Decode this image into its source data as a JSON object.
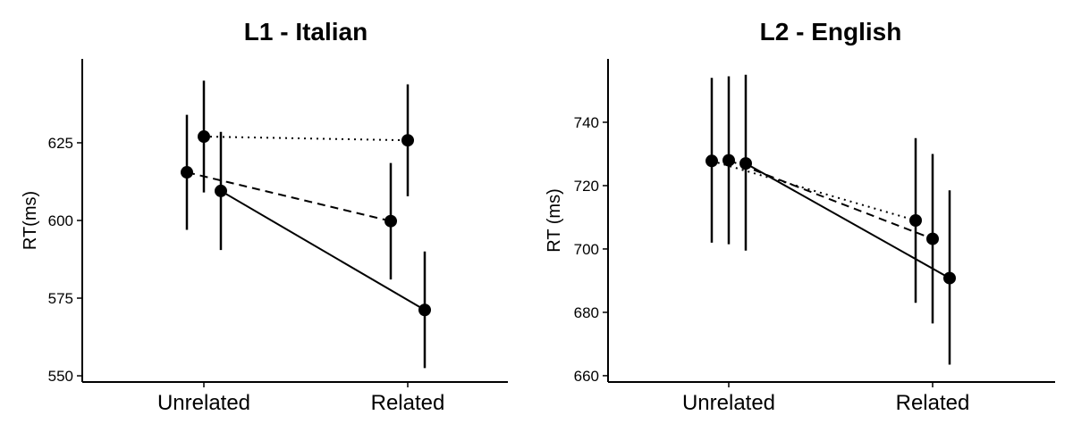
{
  "chart_data": [
    {
      "type": "scatter",
      "title": "L1 - Italian",
      "xlabel": "",
      "ylabel": "RT(ms)",
      "categories": [
        "Unrelated",
        "Related"
      ],
      "yticks": [
        550,
        575,
        600,
        625
      ],
      "ylim": [
        548,
        652
      ],
      "grid": false,
      "legend": "none",
      "series": [
        {
          "linestyle": "dashed",
          "values": [
            615.5,
            599.8
          ],
          "lower": [
            597.0,
            581.0
          ],
          "upper": [
            634.0,
            618.5
          ]
        },
        {
          "linestyle": "dotted",
          "values": [
            627.0,
            625.8
          ],
          "lower": [
            609.0,
            607.8
          ],
          "upper": [
            645.0,
            643.8
          ]
        },
        {
          "linestyle": "solid",
          "values": [
            609.5,
            571.2
          ],
          "lower": [
            590.5,
            552.5
          ],
          "upper": [
            628.5,
            590.0
          ]
        }
      ]
    },
    {
      "type": "scatter",
      "title": "L2 - English",
      "xlabel": "",
      "ylabel": "RT (ms)",
      "categories": [
        "Unrelated",
        "Related"
      ],
      "yticks": [
        660,
        680,
        700,
        720,
        740
      ],
      "ylim": [
        658,
        760
      ],
      "grid": false,
      "legend": "none",
      "series": [
        {
          "linestyle": "dotted",
          "values": [
            727.8,
            709.0
          ],
          "lower": [
            702.0,
            683.0
          ],
          "upper": [
            754.0,
            735.0
          ]
        },
        {
          "linestyle": "dashed",
          "values": [
            728.0,
            703.2
          ],
          "lower": [
            701.5,
            676.5
          ],
          "upper": [
            754.5,
            730.0
          ]
        },
        {
          "linestyle": "solid",
          "values": [
            727.0,
            690.8
          ],
          "lower": [
            699.5,
            663.5
          ],
          "upper": [
            755.0,
            718.5
          ]
        }
      ]
    }
  ]
}
